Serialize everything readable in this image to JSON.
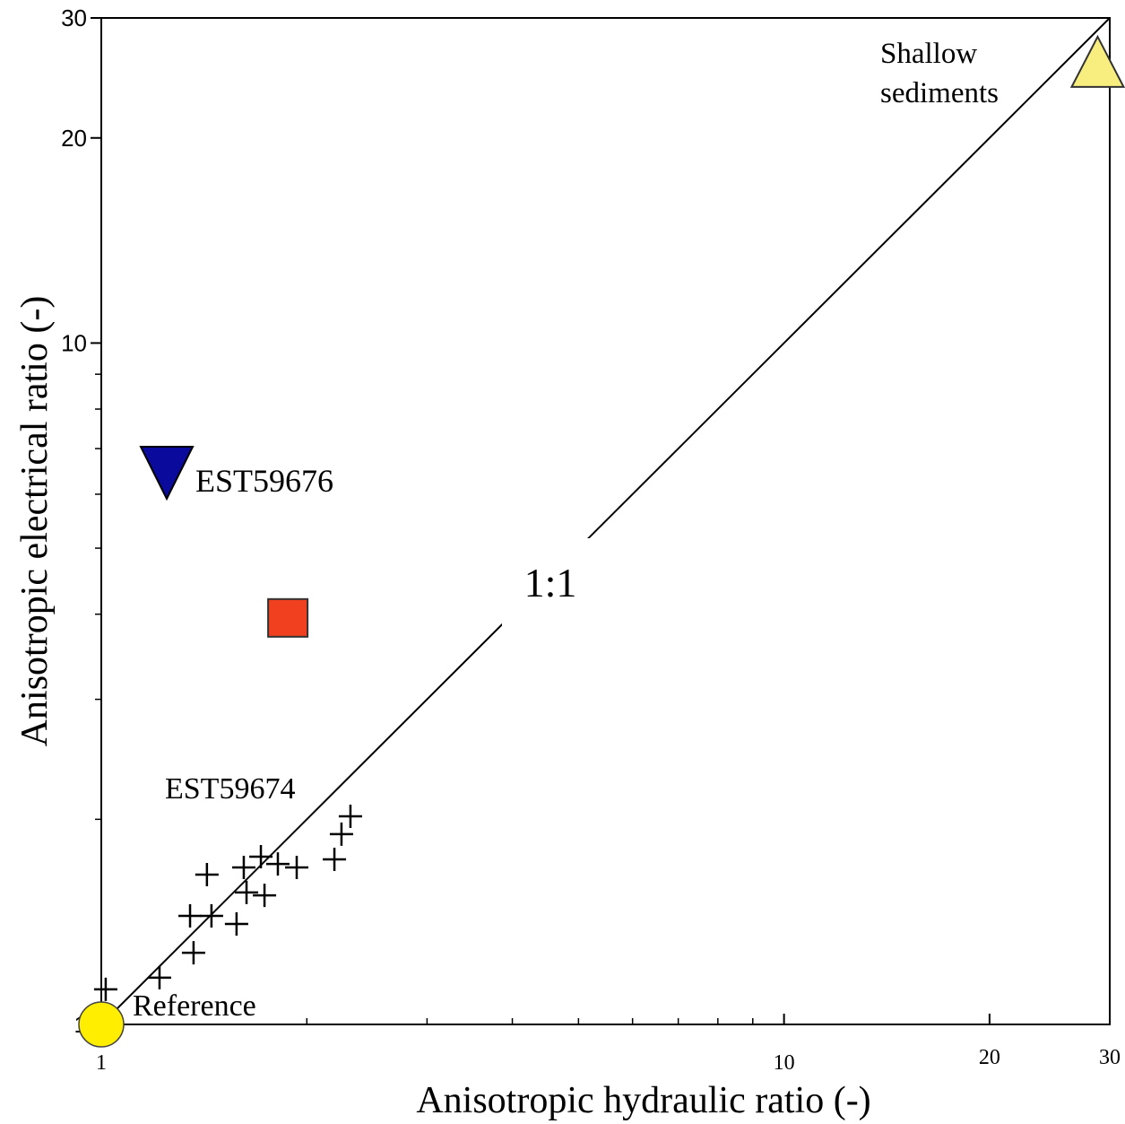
{
  "chart_data": {
    "type": "scatter",
    "x_label": "Anisotropic hydraulic ratio (-)",
    "y_label": "Anisotropic electrical ratio (-)",
    "log_x": true,
    "log_y": true,
    "xlim": [
      1,
      30
    ],
    "ylim": [
      1,
      30
    ],
    "xticks": [
      1,
      10,
      20,
      30
    ],
    "yticks": [
      1,
      10,
      20,
      30
    ],
    "xminorticks": [
      2,
      3,
      4,
      5,
      6,
      7,
      8,
      9
    ],
    "yminorticks": [
      2,
      3,
      4,
      5,
      6,
      7,
      8,
      9
    ],
    "reference_line": {
      "label": "1:1",
      "from": [
        1,
        1
      ],
      "to": [
        30,
        30
      ]
    },
    "series": [
      {
        "marker": "cross",
        "color": "#000000",
        "x": [
          1.015,
          1.217,
          1.365,
          1.349,
          1.45,
          1.578,
          1.428,
          1.617,
          1.632,
          1.734,
          1.713,
          1.814,
          1.933,
          2.195,
          2.248,
          2.317
        ],
        "values": [
          1.126,
          1.171,
          1.274,
          1.443,
          1.443,
          1.404,
          1.659,
          1.7,
          1.562,
          1.547,
          1.763,
          1.72,
          1.7,
          1.747,
          1.902,
          2.02
        ]
      },
      {
        "marker": "circle",
        "color": "#ffee00",
        "x": [
          1
        ],
        "values": [
          1
        ]
      },
      {
        "marker": "triangle-down",
        "color": "#0a0a9c",
        "x": [
          1.247
        ],
        "values": [
          6.55
        ]
      },
      {
        "marker": "square",
        "color": "#f04020",
        "x": [
          1.876
        ],
        "values": [
          3.95
        ]
      },
      {
        "marker": "triangle-up",
        "color": "#f8ee80",
        "x": [
          28.8
        ],
        "values": [
          25.4
        ]
      }
    ],
    "annotations": [
      "EST59674",
      "Reference",
      "EST59676",
      "Shallow",
      "sediments"
    ]
  }
}
